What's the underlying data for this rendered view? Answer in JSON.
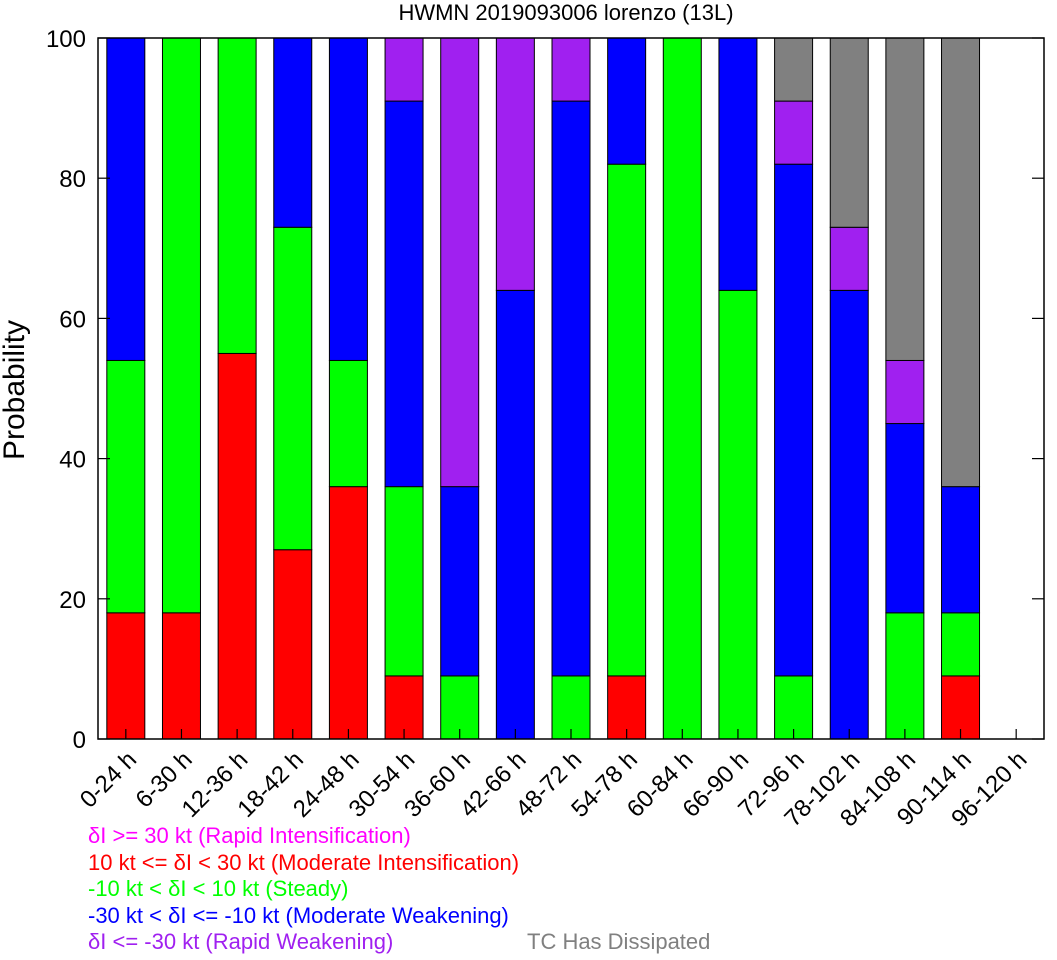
{
  "chart_data": {
    "type": "bar",
    "stacked": true,
    "title": "HWMN 2019093006 lorenzo (13L)",
    "ylabel": "Probability",
    "ylim": [
      0,
      100
    ],
    "yticks": [
      0,
      20,
      40,
      60,
      80,
      100
    ],
    "categories": [
      "0-24 h",
      "6-30 h",
      "12-36 h",
      "18-42 h",
      "24-48 h",
      "30-54 h",
      "36-60 h",
      "42-66 h",
      "48-72 h",
      "54-78 h",
      "60-84 h",
      "66-90 h",
      "72-96 h",
      "78-102 h",
      "84-108 h",
      "90-114 h",
      "96-120 h"
    ],
    "series": [
      {
        "key": "ri",
        "color": "#ff00ff",
        "values": [
          0,
          0,
          0,
          0,
          0,
          0,
          0,
          0,
          0,
          0,
          0,
          0,
          0,
          0,
          0,
          0,
          0
        ]
      },
      {
        "key": "mi",
        "color": "#ff0000",
        "values": [
          18,
          18,
          55,
          27,
          36,
          9,
          0,
          0,
          0,
          9,
          0,
          0,
          0,
          0,
          0,
          9,
          0
        ]
      },
      {
        "key": "st",
        "color": "#00ff00",
        "values": [
          36,
          82,
          45,
          46,
          18,
          27,
          9,
          0,
          9,
          73,
          100,
          64,
          9,
          0,
          18,
          9,
          0
        ]
      },
      {
        "key": "mw",
        "color": "#0000ff",
        "values": [
          46,
          0,
          0,
          27,
          46,
          55,
          27,
          64,
          82,
          18,
          0,
          36,
          73,
          64,
          27,
          18,
          0
        ]
      },
      {
        "key": "rw",
        "color": "#a020f0",
        "values": [
          0,
          0,
          0,
          0,
          0,
          9,
          64,
          36,
          9,
          0,
          0,
          0,
          9,
          9,
          9,
          0,
          0
        ]
      },
      {
        "key": "dis",
        "color": "#808080",
        "values": [
          0,
          0,
          0,
          0,
          0,
          0,
          0,
          0,
          0,
          0,
          0,
          0,
          9,
          27,
          46,
          64,
          0
        ]
      }
    ],
    "grid": false
  },
  "legend": {
    "ri": {
      "label": "δI >= 30 kt (Rapid Intensification)",
      "color": "#ff00ff"
    },
    "mi": {
      "label": "10 kt <= δI < 30 kt (Moderate Intensification)",
      "color": "#ff0000"
    },
    "st": {
      "label": "-10 kt < δI < 10 kt (Steady)",
      "color": "#00ff00"
    },
    "mw": {
      "label": "-30 kt < δI <= -10 kt (Moderate Weakening)",
      "color": "#0000ff"
    },
    "rw": {
      "label": "δI <= -30 kt (Rapid Weakening)",
      "color": "#a020f0"
    },
    "dis": {
      "label": "TC Has Dissipated",
      "color": "#808080"
    }
  }
}
